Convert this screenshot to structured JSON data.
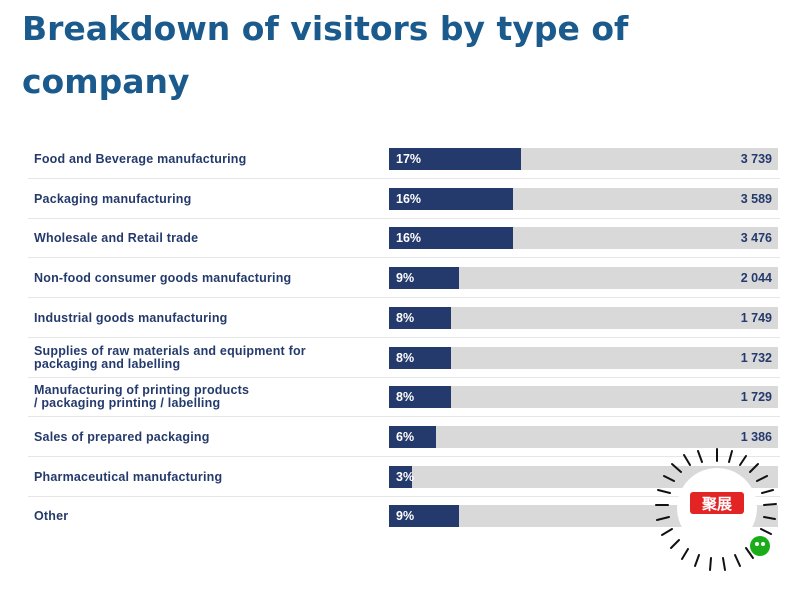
{
  "page": {
    "title": "Breakdown of visitors by type of company"
  },
  "chart_data": {
    "type": "bar",
    "orientation": "horizontal",
    "categories": [
      "Food and Beverage manufacturing",
      "Packaging manufacturing",
      "Wholesale and Retail trade",
      "Non-food consumer goods manufacturing",
      "Industrial goods manufacturing",
      "Supplies of raw materials and equipment for\npackaging and labelling",
      "Manufacturing of printing products\n/ packaging printing / labelling",
      "Sales of prepared packaging",
      "Pharmaceutical manufacturing",
      "Other"
    ],
    "percentages": [
      17,
      16,
      16,
      9,
      8,
      8,
      8,
      6,
      3,
      9
    ],
    "percent_labels": [
      "17%",
      "16%",
      "16%",
      "9%",
      "8%",
      "8%",
      "8%",
      "6%",
      "3%",
      "9%"
    ],
    "value_labels": [
      "3 739",
      "3 589",
      "3 476",
      "2 044",
      "1 749",
      "1 732",
      "1 729",
      "1 386",
      "",
      ""
    ],
    "xlim": [
      0,
      50
    ],
    "title": "Breakdown of visitors by type of company",
    "xlabel": "",
    "ylabel": "",
    "grid": false,
    "legend": "none",
    "colors": {
      "bar": "#253a6c",
      "track": "#d9d9d9",
      "title": "#1a5a8c",
      "label": "#253a6c"
    }
  },
  "overlay": {
    "qr_badge_text": "聚展"
  }
}
